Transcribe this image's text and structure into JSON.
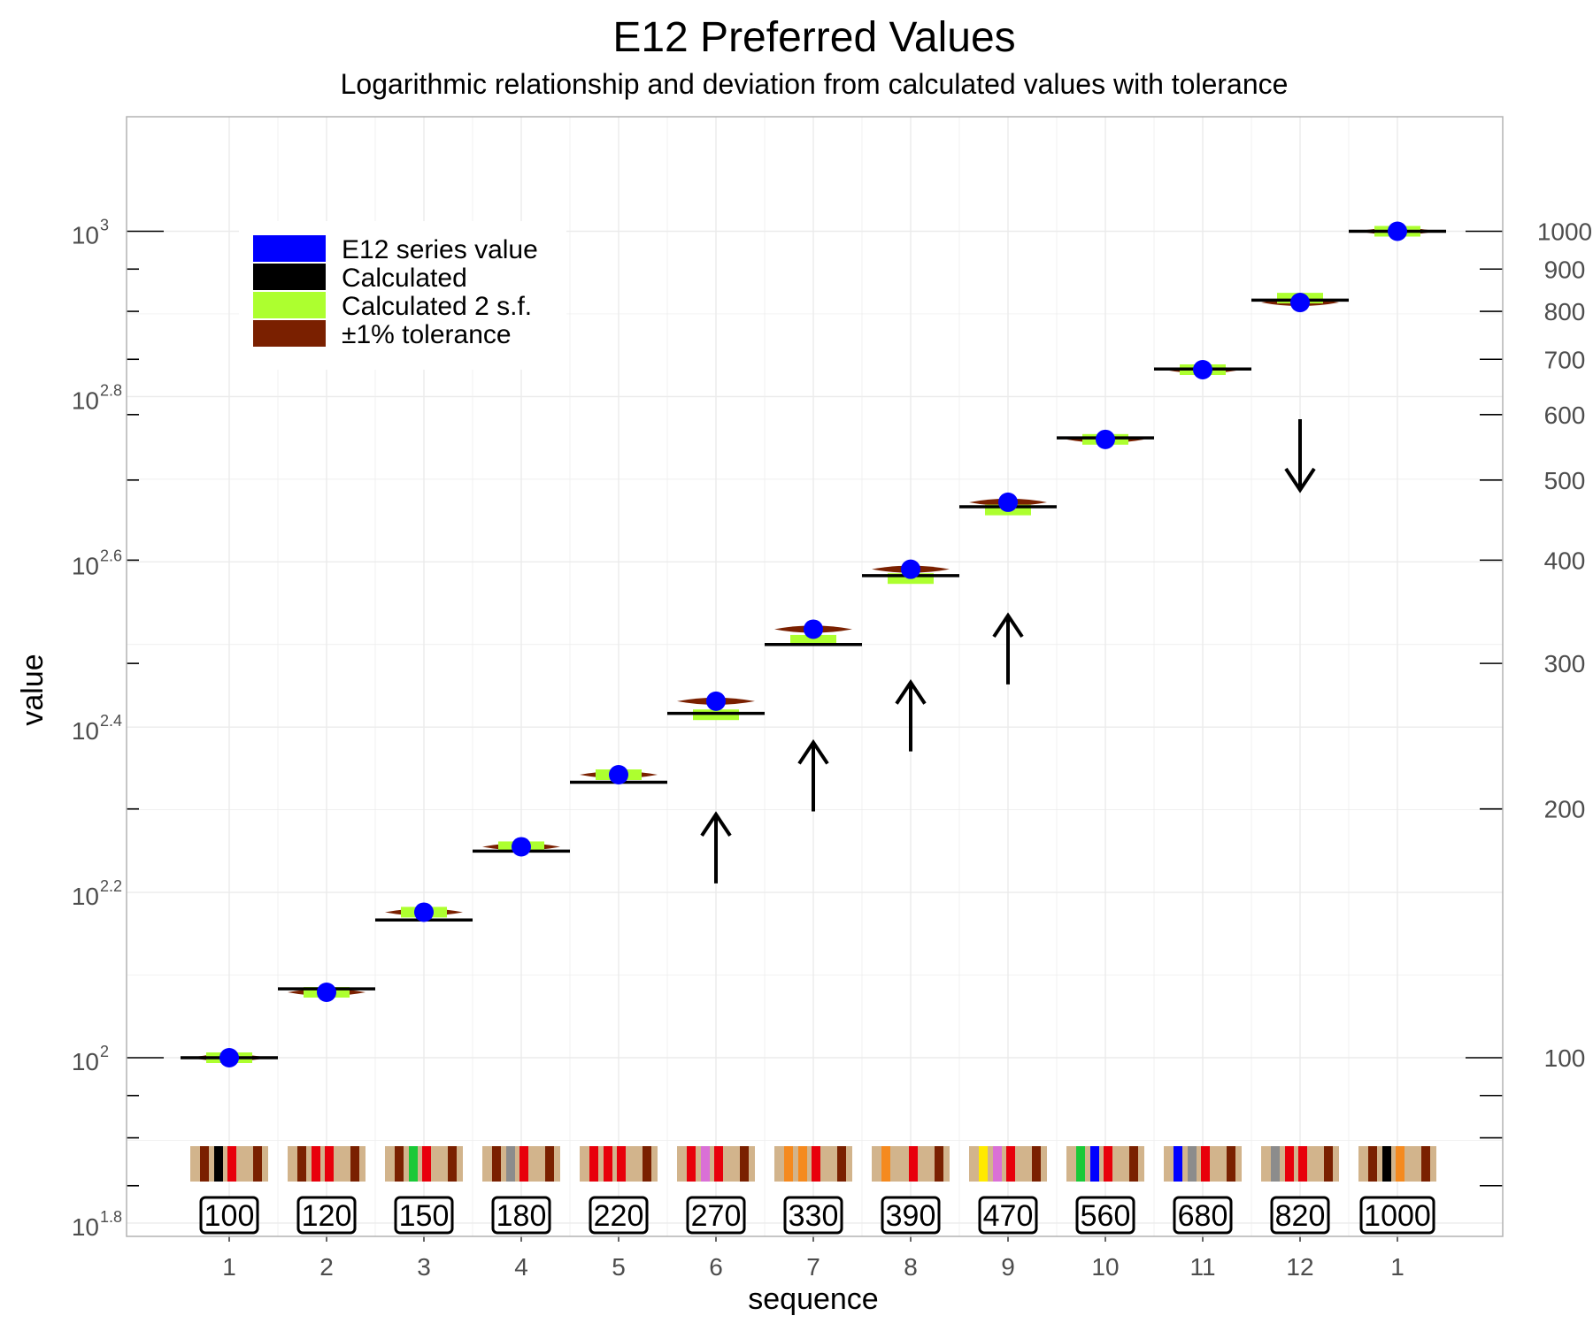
{
  "chart_data": {
    "type": "scatter",
    "title": "E12 Preferred Values",
    "subtitle": "Logarithmic relationship and deviation from calculated values with tolerance",
    "xlabel": "sequence",
    "ylabel": "value",
    "y_scale": "log10",
    "ylim_log10": [
      1.8,
      3.12
    ],
    "x_tick_labels": [
      "1",
      "2",
      "3",
      "4",
      "5",
      "6",
      "7",
      "8",
      "9",
      "10",
      "11",
      "12",
      "1"
    ],
    "left_axis_ticks": [
      {
        "base": "10",
        "exp": "1.8",
        "log": 1.8
      },
      {
        "base": "10",
        "exp": "2",
        "log": 2.0
      },
      {
        "base": "10",
        "exp": "2.2",
        "log": 2.2
      },
      {
        "base": "10",
        "exp": "2.4",
        "log": 2.4
      },
      {
        "base": "10",
        "exp": "2.6",
        "log": 2.6
      },
      {
        "base": "10",
        "exp": "2.8",
        "log": 2.8
      },
      {
        "base": "10",
        "exp": "3",
        "log": 3.0
      }
    ],
    "right_axis_ticks": [
      {
        "label": "100",
        "value": 100
      },
      {
        "label": "200",
        "value": 200
      },
      {
        "label": "300",
        "value": 300
      },
      {
        "label": "400",
        "value": 400
      },
      {
        "label": "500",
        "value": 500
      },
      {
        "label": "600",
        "value": 600
      },
      {
        "label": "700",
        "value": 700
      },
      {
        "label": "800",
        "value": 800
      },
      {
        "label": "900",
        "value": 900
      },
      {
        "label": "1000",
        "value": 1000
      }
    ],
    "right_axis_minor_ticks": [
      70,
      80,
      90
    ],
    "legend": {
      "position": "top-left",
      "entries": [
        {
          "label": "E12 series value",
          "color": "#0000ff"
        },
        {
          "label": "Calculated",
          "color": "#000000"
        },
        {
          "label": "Calculated 2 s.f.",
          "color": "#adff2f"
        },
        {
          "label": "±1% tolerance",
          "color": "#7a2000"
        }
      ]
    },
    "series": [
      {
        "name": "E12 series value",
        "values": [
          100,
          120,
          150,
          180,
          220,
          270,
          330,
          390,
          470,
          560,
          680,
          820,
          1000
        ]
      },
      {
        "name": "Calculated",
        "values": [
          100,
          121.15,
          146.78,
          177.83,
          215.44,
          261.02,
          316.23,
          383.12,
          464.16,
          562.34,
          681.29,
          825.4,
          1000
        ]
      },
      {
        "name": "Calculated 2 s.f.",
        "values": [
          100,
          120,
          150,
          180,
          220,
          260,
          320,
          380,
          460,
          560,
          680,
          830,
          1000
        ]
      }
    ],
    "tolerance_percent": 1,
    "deviation_arrows": [
      {
        "index": 6,
        "direction": "up"
      },
      {
        "index": 7,
        "direction": "up"
      },
      {
        "index": 8,
        "direction": "up"
      },
      {
        "index": 9,
        "direction": "up"
      },
      {
        "index": 12,
        "direction": "down"
      }
    ],
    "resistor_labels": [
      "100",
      "120",
      "150",
      "180",
      "220",
      "270",
      "330",
      "390",
      "470",
      "560",
      "680",
      "820",
      "1000"
    ],
    "resistor_bands": [
      [
        "#7a2000",
        "#000000",
        "#e8000b",
        "#7a2000"
      ],
      [
        "#7a2000",
        "#e8000b",
        "#e8000b",
        "#7a2000"
      ],
      [
        "#7a2000",
        "#1ac938",
        "#e8000b",
        "#7a2000"
      ],
      [
        "#7a2000",
        "#8c8c8c",
        "#e8000b",
        "#7a2000"
      ],
      [
        "#e8000b",
        "#e8000b",
        "#e8000b",
        "#7a2000"
      ],
      [
        "#e8000b",
        "#da70d6",
        "#e8000b",
        "#7a2000"
      ],
      [
        "#f58a1f",
        "#f58a1f",
        "#e8000b",
        "#7a2000"
      ],
      [
        "#f58a1f",
        "#d2b48c",
        "#e8000b",
        "#7a2000"
      ],
      [
        "#ffea00",
        "#da70d6",
        "#e8000b",
        "#7a2000"
      ],
      [
        "#1ac938",
        "#0000ff",
        "#e8000b",
        "#7a2000"
      ],
      [
        "#0000ff",
        "#8c8c8c",
        "#e8000b",
        "#7a2000"
      ],
      [
        "#8c8c8c",
        "#e8000b",
        "#e8000b",
        "#7a2000"
      ],
      [
        "#7a2000",
        "#000000",
        "#f58a1f",
        "#7a2000"
      ]
    ],
    "colors": {
      "grid": "#ebebeb",
      "panel_border": "#b3b3b3",
      "resistor_body": "#d2b48c",
      "axis_text": "#4d4d4d"
    }
  }
}
